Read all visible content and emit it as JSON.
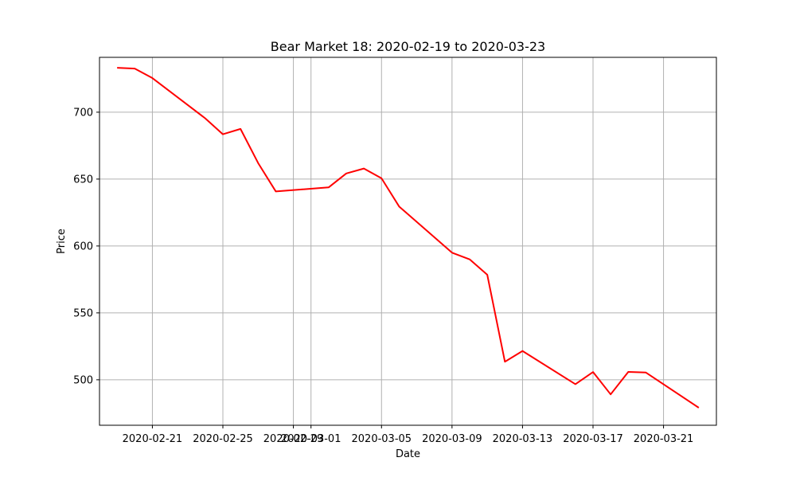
{
  "chart_data": {
    "type": "line",
    "title": "Bear Market 18: 2020-02-19 to 2020-03-23",
    "xlabel": "Date",
    "ylabel": "Price",
    "x_type": "date",
    "xlim": [
      "2020-02-18",
      "2020-03-24"
    ],
    "ylim": [
      466,
      741
    ],
    "grid": true,
    "x_ticks": [
      "2020-02-21",
      "2020-02-25",
      "2020-02-29",
      "2020-03-01",
      "2020-03-05",
      "2020-03-09",
      "2020-03-13",
      "2020-03-17",
      "2020-03-21"
    ],
    "x_tick_labels": [
      "2020-02-21",
      "2020-02-25",
      "2020-02-29",
      "2020-03-01",
      "2020-03-05",
      "2020-03-09",
      "2020-03-13",
      "2020-03-17",
      "2020-03-21"
    ],
    "y_ticks": [
      500,
      550,
      600,
      650,
      700
    ],
    "y_tick_labels": [
      "500",
      "550",
      "600",
      "650",
      "700"
    ],
    "series": [
      {
        "color": "#ff0000",
        "x": [
          "2020-02-19",
          "2020-02-20",
          "2020-02-21",
          "2020-02-24",
          "2020-02-25",
          "2020-02-26",
          "2020-02-27",
          "2020-02-28",
          "2020-03-02",
          "2020-03-03",
          "2020-03-04",
          "2020-03-05",
          "2020-03-06",
          "2020-03-09",
          "2020-03-10",
          "2020-03-11",
          "2020-03-12",
          "2020-03-13",
          "2020-03-16",
          "2020-03-17",
          "2020-03-18",
          "2020-03-19",
          "2020-03-20",
          "2020-03-23"
        ],
        "y": [
          733.2,
          732.6,
          725.5,
          695.4,
          683.5,
          687.5,
          662.0,
          640.8,
          643.8,
          654.2,
          657.9,
          650.6,
          629.5,
          595.0,
          590.0,
          578.5,
          513.5,
          521.5,
          496.7,
          505.8,
          489.1,
          505.9,
          505.4,
          479.1
        ]
      }
    ]
  }
}
